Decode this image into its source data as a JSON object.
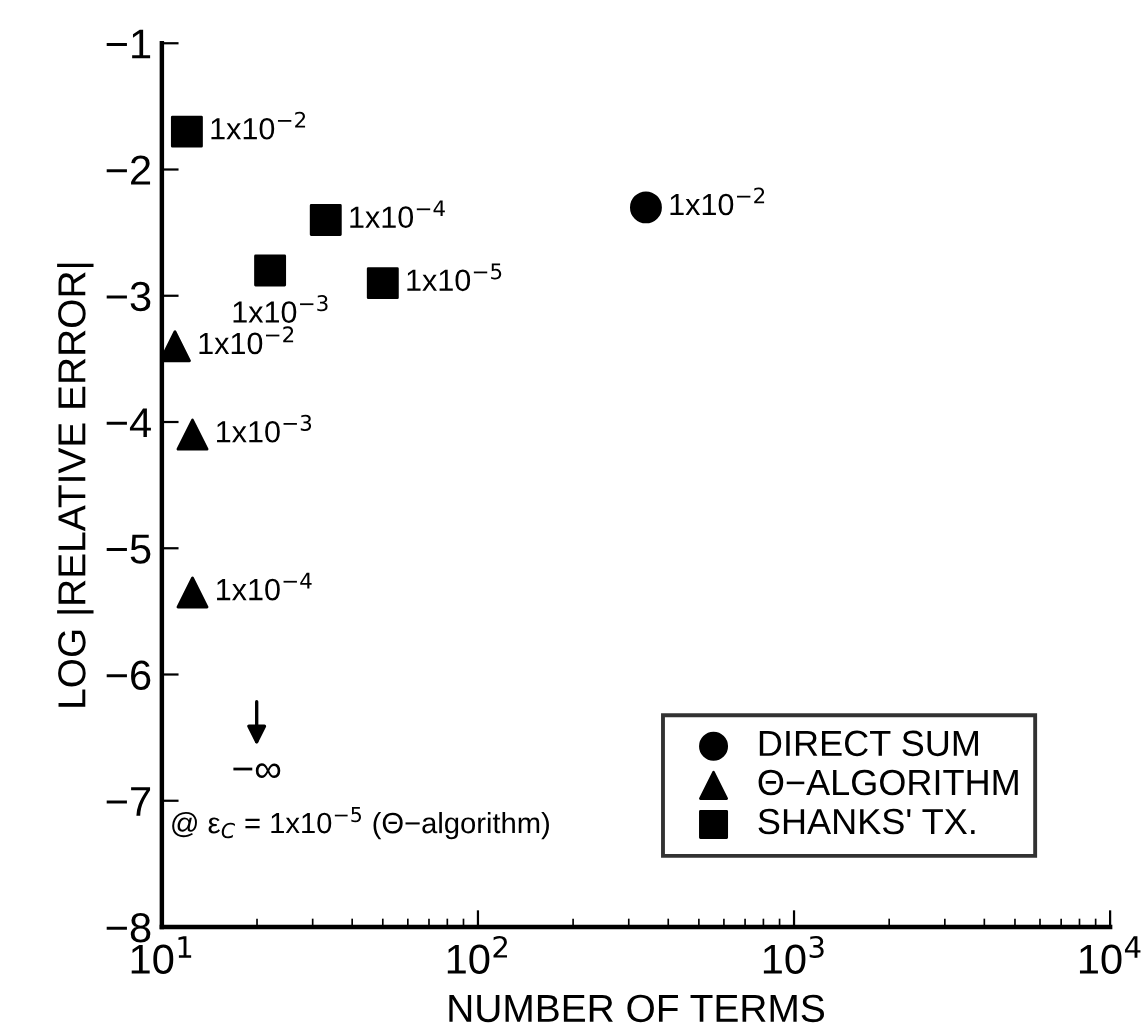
{
  "chart_data": {
    "type": "scatter",
    "xlabel": "NUMBER OF TERMS",
    "ylabel": "LOG |RELATIVE ERROR|",
    "series": [
      {
        "name": "DIRECT SUM",
        "color": "#000000",
        "marker": "circle",
        "x": [
          340
        ],
        "values": [
          -2.3
        ]
      },
      {
        "name": "Θ−ALGORITHM",
        "color": "#000000",
        "marker": "triangle",
        "x": [
          11,
          12.5,
          12.5
        ],
        "values": [
          -3.4,
          -4.1,
          -5.35
        ]
      },
      {
        "name": "SHANKS' TX.",
        "color": "#000000",
        "marker": "square",
        "x": [
          12,
          22,
          33,
          50
        ],
        "values": [
          -1.7,
          -2.8,
          -2.4,
          -2.9
        ]
      }
    ],
    "log": "x",
    "xlim": [
      10,
      10000
    ],
    "xticks": [
      {
        "value": 10,
        "label": "10$^{1}$"
      },
      {
        "value": 100,
        "label": "10$^{2}$"
      },
      {
        "value": 1000,
        "label": "10$^{3}$"
      },
      {
        "value": 10000,
        "label": "10$^{4}$"
      }
    ],
    "ylim": [
      -8,
      -1
    ],
    "yticks": [
      -8,
      -7,
      -6,
      -5,
      -4,
      -3,
      -2,
      -1
    ],
    "grid": false,
    "legend": "bottom right",
    "annotations": [
      {
        "text": "1x10$^{−2}$",
        "x": 340,
        "y": -2.3
      },
      {
        "text": "1x10$^{−2}$",
        "x": 11,
        "y": -3.4
      },
      {
        "text": "1x10$^{−3}$",
        "x": 12.5,
        "y": -4.1
      },
      {
        "text": "1x10$^{−4}$",
        "x": 12.5,
        "y": -5.35
      },
      {
        "text": "1x10$^{−2}$",
        "x": 12,
        "y": -1.7
      },
      {
        "text": "1x10$^{−3}$",
        "x": 22,
        "y": -2.8
      },
      {
        "text": "1x10$^{−4}$",
        "x": 33,
        "y": -2.4
      },
      {
        "text": "1x10$^{−5}$",
        "x": 50,
        "y": -2.9
      },
      "−∞",
      "@ ε$_{C}$ = 1x10$^{−5}$ (Θ−algorithm)"
    ]
  }
}
